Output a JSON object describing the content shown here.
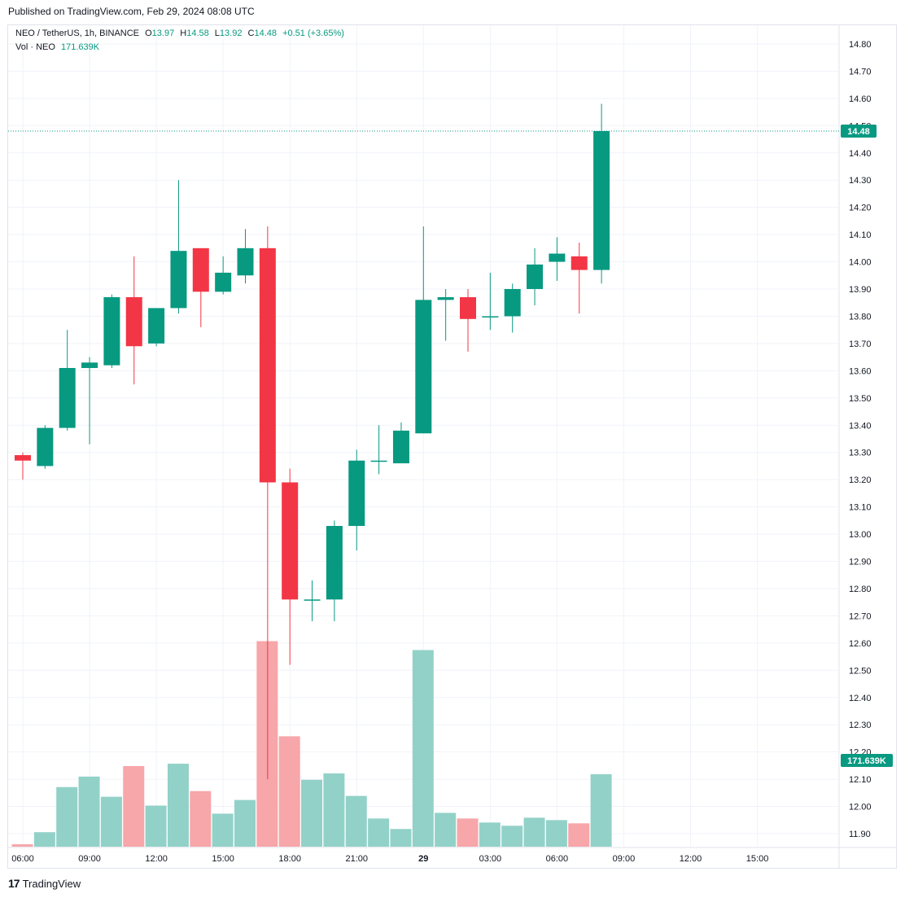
{
  "published": "Published on TradingView.com, Feb 29, 2024 08:08 UTC",
  "legend": {
    "symbol": "NEO / TetherUS, 1h, BINANCE",
    "open_label": "O",
    "open": "13.97",
    "high_label": "H",
    "high": "14.58",
    "low_label": "L",
    "low": "13.92",
    "close_label": "C",
    "close": "14.48",
    "change": "+0.51 (+3.65%)",
    "vol_label": "Vol · NEO",
    "vol_value": "171.639K"
  },
  "footer": {
    "brand": "TradingView",
    "logo_text": "17"
  },
  "colors": {
    "up": "#089981",
    "down": "#f23645",
    "up_vol": "#92d1c8",
    "down_vol": "#f7a6a9",
    "grid": "#f0f3fa"
  },
  "chart_data": {
    "type": "candlestick",
    "symbol": "NEO / TetherUS",
    "interval": "1h",
    "exchange": "BINANCE",
    "ylim": [
      11.87,
      14.84
    ],
    "y_ticks": [
      "11.90",
      "12.00",
      "12.10",
      "12.20",
      "12.30",
      "12.40",
      "12.50",
      "12.60",
      "12.70",
      "12.80",
      "12.90",
      "13.00",
      "13.10",
      "13.20",
      "13.30",
      "13.40",
      "13.50",
      "13.60",
      "13.70",
      "13.80",
      "13.90",
      "14.00",
      "14.10",
      "14.20",
      "14.30",
      "14.40",
      "14.50",
      "14.60",
      "14.70",
      "14.80"
    ],
    "x_ticks": [
      {
        "label": "06:00",
        "index": 0
      },
      {
        "label": "09:00",
        "index": 3
      },
      {
        "label": "12:00",
        "index": 6
      },
      {
        "label": "15:00",
        "index": 9
      },
      {
        "label": "18:00",
        "index": 12
      },
      {
        "label": "21:00",
        "index": 15
      },
      {
        "label": "29",
        "index": 18
      },
      {
        "label": "03:00",
        "index": 21
      },
      {
        "label": "06:00",
        "index": 24
      },
      {
        "label": "09:00",
        "index": 27
      },
      {
        "label": "12:00",
        "index": 30
      },
      {
        "label": "15:00",
        "index": 33
      }
    ],
    "last_price": "14.48",
    "last_volume": "171.639K",
    "candles": [
      {
        "o": 13.29,
        "h": 13.3,
        "l": 13.2,
        "c": 13.27
      },
      {
        "o": 13.25,
        "h": 13.4,
        "l": 13.24,
        "c": 13.39
      },
      {
        "o": 13.39,
        "h": 13.75,
        "l": 13.38,
        "c": 13.61
      },
      {
        "o": 13.61,
        "h": 13.65,
        "l": 13.33,
        "c": 13.63
      },
      {
        "o": 13.62,
        "h": 13.88,
        "l": 13.61,
        "c": 13.87
      },
      {
        "o": 13.87,
        "h": 14.02,
        "l": 13.55,
        "c": 13.69
      },
      {
        "o": 13.7,
        "h": 13.83,
        "l": 13.69,
        "c": 13.83
      },
      {
        "o": 13.83,
        "h": 14.3,
        "l": 13.81,
        "c": 14.04
      },
      {
        "o": 14.05,
        "h": 14.05,
        "l": 13.76,
        "c": 13.89
      },
      {
        "o": 13.89,
        "h": 14.02,
        "l": 13.88,
        "c": 13.96
      },
      {
        "o": 13.95,
        "h": 14.12,
        "l": 13.92,
        "c": 14.05
      },
      {
        "o": 14.05,
        "h": 14.13,
        "l": 12.1,
        "c": 13.19
      },
      {
        "o": 13.19,
        "h": 13.24,
        "l": 12.52,
        "c": 12.76
      },
      {
        "o": 12.76,
        "h": 12.83,
        "l": 12.68,
        "c": 12.76
      },
      {
        "o": 12.76,
        "h": 13.05,
        "l": 12.68,
        "c": 13.03
      },
      {
        "o": 13.03,
        "h": 13.31,
        "l": 12.94,
        "c": 13.27
      },
      {
        "o": 13.27,
        "h": 13.4,
        "l": 13.22,
        "c": 13.27
      },
      {
        "o": 13.26,
        "h": 13.41,
        "l": 13.26,
        "c": 13.38
      },
      {
        "o": 13.37,
        "h": 14.13,
        "l": 13.37,
        "c": 13.86
      },
      {
        "o": 13.86,
        "h": 13.9,
        "l": 13.71,
        "c": 13.87
      },
      {
        "o": 13.87,
        "h": 13.9,
        "l": 13.67,
        "c": 13.79
      },
      {
        "o": 13.8,
        "h": 13.96,
        "l": 13.75,
        "c": 13.8
      },
      {
        "o": 13.8,
        "h": 13.92,
        "l": 13.74,
        "c": 13.9
      },
      {
        "o": 13.9,
        "h": 14.05,
        "l": 13.84,
        "c": 13.99
      },
      {
        "o": 14.0,
        "h": 14.09,
        "l": 13.93,
        "c": 14.03
      },
      {
        "o": 14.02,
        "h": 14.07,
        "l": 13.81,
        "c": 13.97
      },
      {
        "o": 13.97,
        "h": 14.58,
        "l": 13.92,
        "c": 14.48
      }
    ],
    "volume": [
      0.03,
      0.18,
      0.74,
      0.87,
      0.62,
      1.0,
      0.51,
      1.03,
      0.69,
      0.41,
      0.58,
      2.55,
      1.37,
      0.83,
      0.91,
      0.63,
      0.35,
      0.22,
      2.44,
      0.42,
      0.35,
      0.3,
      0.26,
      0.36,
      0.33,
      0.29,
      0.9
    ]
  }
}
